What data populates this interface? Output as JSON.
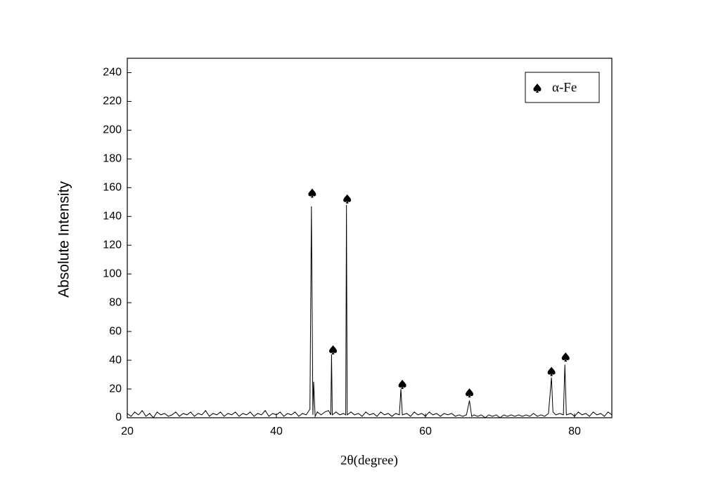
{
  "chart_data": {
    "type": "line",
    "xlabel": "2θ(degree)",
    "ylabel": "Absolute Intensity",
    "xlim": [
      20,
      85
    ],
    "ylim": [
      0,
      250
    ],
    "xticks": [
      20,
      40,
      60,
      80
    ],
    "yticks": [
      0,
      20,
      40,
      60,
      80,
      100,
      120,
      140,
      160,
      180,
      200,
      220,
      240
    ],
    "legend": "upper right",
    "series": [
      {
        "color": "#000000",
        "x": [
          20,
          20.5,
          21,
          21.5,
          22,
          22.5,
          23,
          23.5,
          24,
          24.5,
          25,
          25.5,
          26,
          26.5,
          27,
          27.5,
          28,
          28.5,
          29,
          29.5,
          30,
          30.5,
          31,
          31.5,
          32,
          32.5,
          33,
          33.5,
          34,
          34.5,
          35,
          35.5,
          36,
          36.5,
          37,
          37.5,
          38,
          38.5,
          39,
          39.5,
          40,
          40.5,
          41,
          41.5,
          42,
          42.5,
          43,
          43.5,
          44,
          44.5,
          44.7,
          44.9,
          45.0,
          45.2,
          45.5,
          46,
          46.5,
          47,
          47.3,
          47.4,
          47.5,
          48,
          48.5,
          49,
          49.3,
          49.4,
          49.5,
          50,
          50.5,
          51,
          51.5,
          52,
          52.5,
          53,
          53.5,
          54,
          54.5,
          55,
          55.5,
          56,
          56.5,
          56.7,
          56.9,
          57.5,
          58,
          58.5,
          59,
          59.5,
          60,
          60.5,
          61,
          61.5,
          62,
          62.5,
          63,
          63.5,
          64,
          64.5,
          65,
          65.5,
          65.9,
          66.2,
          66.5,
          67,
          67.5,
          68,
          68.5,
          69,
          69.5,
          70,
          70.5,
          71,
          71.5,
          72,
          72.5,
          73,
          73.5,
          74,
          74.5,
          75,
          75.5,
          76,
          76.5,
          76.9,
          77.1,
          77.5,
          78,
          78.5,
          78.7,
          78.9,
          79.5,
          80,
          80.5,
          81,
          81.5,
          82,
          82.5,
          83,
          83.5,
          84,
          84.5,
          85
        ],
        "values": [
          3,
          1,
          4,
          2,
          5,
          1,
          3,
          0,
          4,
          2,
          3,
          1,
          2,
          4,
          1,
          3,
          2,
          4,
          1,
          3,
          2,
          5,
          1,
          3,
          2,
          4,
          1,
          3,
          2,
          4,
          1,
          3,
          2,
          4,
          1,
          3,
          2,
          5,
          1,
          3,
          2,
          4,
          1,
          3,
          2,
          4,
          1,
          3,
          2,
          6,
          147,
          2,
          25,
          1,
          4,
          2,
          4,
          5,
          2,
          44,
          2,
          4,
          2,
          3,
          2,
          148,
          2,
          4,
          2,
          3,
          1,
          4,
          2,
          3,
          1,
          4,
          2,
          3,
          1,
          3,
          2,
          20,
          2,
          3,
          1,
          4,
          2,
          3,
          1,
          4,
          2,
          3,
          1,
          3,
          2,
          3,
          1,
          2,
          1,
          2,
          12,
          1,
          2,
          1,
          2,
          0,
          2,
          1,
          2,
          0,
          2,
          1,
          2,
          1,
          2,
          1,
          2,
          1,
          3,
          1,
          2,
          1,
          3,
          28,
          4,
          2,
          3,
          2,
          37,
          2,
          3,
          1,
          4,
          2,
          3,
          1,
          4,
          2,
          3,
          1,
          4,
          2
        ]
      },
      {
        "name": "α-Fe",
        "color": "#000000",
        "marker": "spade",
        "x": [
          44.8,
          47.6,
          49.5,
          56.9,
          65.9,
          76.9,
          78.8
        ],
        "values": [
          156,
          47,
          152,
          23,
          17,
          32,
          42
        ]
      }
    ]
  }
}
